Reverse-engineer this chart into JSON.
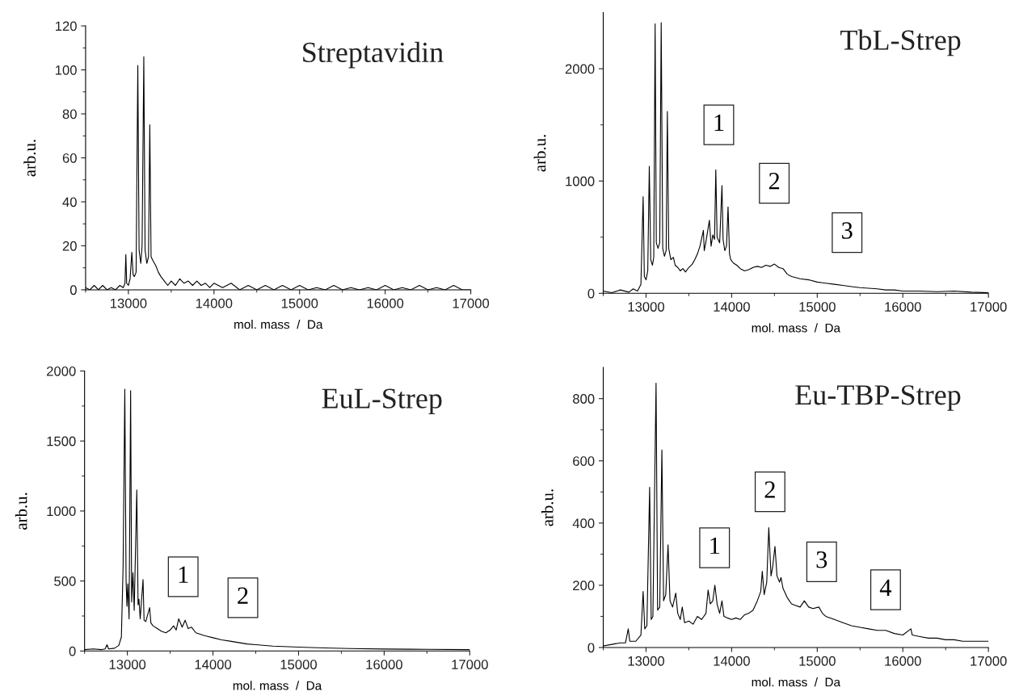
{
  "chart_data": [
    {
      "type": "line",
      "title": "Streptavidin",
      "xlabel": "mol. mass  /  Da",
      "ylabel": "arb.u.",
      "xlim": [
        12500,
        17000
      ],
      "ylim": [
        0,
        120
      ],
      "xticks": [
        {
          "value": 12500,
          "label": null
        },
        13000,
        {
          "value": 13500,
          "label": null
        },
        14000,
        {
          "value": 14500,
          "label": null
        },
        15000,
        {
          "value": 15500,
          "label": null
        },
        16000,
        {
          "value": 16500,
          "label": null
        },
        17000
      ],
      "yticks": [
        0,
        {
          "value": 10,
          "label": null
        },
        20,
        {
          "value": 30,
          "label": null
        },
        40,
        {
          "value": 50,
          "label": null
        },
        60,
        {
          "value": 70,
          "label": null
        },
        80,
        {
          "value": 90,
          "label": null
        },
        100,
        {
          "value": 110,
          "label": null
        },
        120
      ],
      "x": [
        12500,
        12550,
        12600,
        12650,
        12700,
        12750,
        12800,
        12850,
        12900,
        12940,
        12960,
        12970,
        12980,
        13000,
        13020,
        13040,
        13055,
        13070,
        13090,
        13110,
        13125,
        13145,
        13160,
        13180,
        13195,
        13215,
        13235,
        13250,
        13265,
        13290,
        13320,
        13350,
        13380,
        13420,
        13460,
        13500,
        13550,
        13600,
        13650,
        13700,
        13750,
        13800,
        13850,
        13900,
        13950,
        14000,
        14100,
        14200,
        14300,
        14400,
        14500,
        14600,
        14700,
        14800,
        14900,
        15000,
        15100,
        15200,
        15300,
        15400,
        15500,
        15600,
        15700,
        15800,
        15900,
        16000,
        16100,
        16200,
        16300,
        16400,
        16500,
        16600,
        16700,
        16800,
        16900,
        17000
      ],
      "series": [
        {
          "color": "#000000",
          "values": [
            1,
            0,
            2,
            0,
            2,
            0,
            1,
            0,
            2,
            1,
            3,
            16,
            3,
            2,
            5,
            17,
            7,
            6,
            8,
            102,
            18,
            12,
            20,
            106,
            18,
            12,
            15,
            75,
            15,
            13,
            11,
            8,
            6,
            4,
            2,
            4,
            2,
            5,
            3,
            4,
            2,
            4,
            2,
            3,
            1,
            3,
            1,
            3,
            0,
            2,
            0,
            2,
            0,
            2,
            0,
            2,
            0,
            1,
            0,
            2,
            0,
            1,
            0,
            1,
            0,
            2,
            0,
            1,
            0,
            2,
            0,
            1,
            0,
            2,
            0,
            0
          ]
        }
      ]
    },
    {
      "type": "line",
      "title": "TbL-Strep",
      "xlabel": "mol. mass  /  Da",
      "ylabel": "arb.u.",
      "xlim": [
        12500,
        17000
      ],
      "ylim": [
        0,
        2500
      ],
      "xticks": [
        {
          "value": 12500,
          "label": null
        },
        13000,
        {
          "value": 13500,
          "label": null
        },
        14000,
        {
          "value": 14500,
          "label": null
        },
        15000,
        {
          "value": 15500,
          "label": null
        },
        16000,
        {
          "value": 16500,
          "label": null
        },
        17000
      ],
      "yticks": [
        0,
        {
          "value": 500,
          "label": null
        },
        1000,
        {
          "value": 1500,
          "label": null
        },
        2000
      ],
      "x": [
        12500,
        12600,
        12700,
        12800,
        12850,
        12900,
        12940,
        12966,
        12980,
        13000,
        13020,
        13038,
        13055,
        13075,
        13090,
        13106,
        13120,
        13140,
        13160,
        13177,
        13195,
        13215,
        13235,
        13249,
        13265,
        13290,
        13320,
        13340,
        13370,
        13400,
        13430,
        13460,
        13500,
        13540,
        13570,
        13600,
        13630,
        13670,
        13680,
        13700,
        13740,
        13760,
        13780,
        13800,
        13815,
        13830,
        13860,
        13887,
        13900,
        13920,
        13940,
        13958,
        13975,
        13990,
        14020,
        14060,
        14100,
        14150,
        14200,
        14250,
        14300,
        14350,
        14400,
        14450,
        14500,
        14550,
        14600,
        14650,
        14700,
        14800,
        14900,
        15000,
        15100,
        15200,
        15300,
        15400,
        15500,
        15600,
        15700,
        15800,
        15900,
        16000,
        16200,
        16400,
        16600,
        16800,
        17000
      ],
      "series": [
        {
          "color": "#000000",
          "values": [
            20,
            5,
            30,
            10,
            40,
            20,
            80,
            860,
            150,
            120,
            200,
            1130,
            300,
            250,
            320,
            2400,
            450,
            400,
            450,
            2410,
            400,
            330,
            380,
            1620,
            400,
            300,
            320,
            250,
            230,
            200,
            220,
            190,
            230,
            260,
            300,
            350,
            420,
            560,
            380,
            460,
            650,
            420,
            520,
            480,
            1100,
            500,
            450,
            960,
            480,
            380,
            420,
            770,
            350,
            300,
            270,
            250,
            220,
            200,
            210,
            230,
            240,
            230,
            250,
            240,
            260,
            230,
            220,
            170,
            150,
            130,
            120,
            100,
            90,
            80,
            70,
            60,
            50,
            45,
            40,
            30,
            30,
            20,
            20,
            15,
            20,
            10,
            5
          ]
        }
      ],
      "annotations": [
        "1",
        "2",
        "3"
      ]
    },
    {
      "type": "line",
      "title": "EuL-Strep",
      "xlabel": "mol. mass  /  Da",
      "ylabel": "arb.u.",
      "xlim": [
        12500,
        17000
      ],
      "ylim": [
        0,
        2000
      ],
      "xticks": [
        {
          "value": 12500,
          "label": null
        },
        13000,
        {
          "value": 13500,
          "label": null
        },
        14000,
        {
          "value": 14500,
          "label": null
        },
        15000,
        {
          "value": 15500,
          "label": null
        },
        16000,
        {
          "value": 16500,
          "label": null
        },
        17000
      ],
      "yticks": [
        0,
        {
          "value": 250,
          "label": null
        },
        500,
        {
          "value": 750,
          "label": null
        },
        1000,
        {
          "value": 1250,
          "label": null
        },
        1500,
        {
          "value": 1750,
          "label": null
        },
        2000
      ],
      "x": [
        12500,
        12600,
        12700,
        12740,
        12762,
        12780,
        12850,
        12900,
        12930,
        12950,
        12970,
        12985,
        12995,
        13005,
        13020,
        13038,
        13050,
        13065,
        13080,
        13110,
        13125,
        13135,
        13150,
        13183,
        13195,
        13215,
        13260,
        13275,
        13300,
        13350,
        13400,
        13450,
        13500,
        13540,
        13570,
        13600,
        13640,
        13675,
        13710,
        13750,
        13800,
        13900,
        14000,
        14100,
        14200,
        14300,
        14400,
        14500,
        14700,
        15000,
        15300,
        15600,
        16000,
        16500,
        17000
      ],
      "series": [
        {
          "color": "#000000",
          "values": [
            10,
            15,
            10,
            15,
            45,
            15,
            20,
            40,
            100,
            600,
            1870,
            500,
            320,
            480,
            230,
            1860,
            350,
            560,
            290,
            1150,
            330,
            370,
            230,
            510,
            220,
            210,
            310,
            200,
            180,
            160,
            140,
            130,
            150,
            180,
            150,
            230,
            170,
            220,
            160,
            170,
            130,
            110,
            95,
            80,
            70,
            60,
            50,
            45,
            35,
            28,
            22,
            18,
            14,
            12,
            10
          ]
        }
      ],
      "annotations": [
        "1",
        "2"
      ]
    },
    {
      "type": "line",
      "title": "Eu-TBP-Strep",
      "xlabel": "mol. mass  /  Da",
      "ylabel": "arb.u.",
      "xlim": [
        12500,
        17000
      ],
      "ylim": [
        0,
        900
      ],
      "xticks": [
        {
          "value": 12500,
          "label": null
        },
        13000,
        {
          "value": 13500,
          "label": null
        },
        14000,
        {
          "value": 14500,
          "label": null
        },
        15000,
        {
          "value": 15500,
          "label": null
        },
        16000,
        {
          "value": 16500,
          "label": null
        },
        17000
      ],
      "yticks": [
        0,
        {
          "value": 100,
          "label": null
        },
        200,
        {
          "value": 300,
          "label": null
        },
        400,
        {
          "value": 500,
          "label": null
        },
        600,
        {
          "value": 700,
          "label": null
        },
        800
      ],
      "x": [
        12500,
        12600,
        12700,
        12760,
        12792,
        12810,
        12880,
        12940,
        12966,
        12985,
        13010,
        13042,
        13060,
        13080,
        13117,
        13135,
        13160,
        13185,
        13205,
        13230,
        13257,
        13280,
        13310,
        13347,
        13370,
        13400,
        13423,
        13450,
        13500,
        13550,
        13600,
        13650,
        13700,
        13725,
        13750,
        13780,
        13804,
        13830,
        13860,
        13887,
        13910,
        13950,
        14000,
        14050,
        14100,
        14150,
        14200,
        14250,
        14300,
        14340,
        14358,
        14380,
        14410,
        14434,
        14460,
        14480,
        14506,
        14530,
        14560,
        14577,
        14600,
        14650,
        14700,
        14750,
        14800,
        14849,
        14900,
        14950,
        15019,
        15060,
        15100,
        15200,
        15300,
        15400,
        15500,
        15600,
        15700,
        15800,
        15900,
        16000,
        16094,
        16110,
        16200,
        16300,
        16400,
        16500,
        16600,
        16700,
        16800,
        16900,
        17000
      ],
      "series": [
        {
          "color": "#000000",
          "values": [
            5,
            10,
            15,
            15,
            60,
            20,
            20,
            40,
            180,
            60,
            70,
            515,
            90,
            100,
            850,
            120,
            130,
            635,
            150,
            170,
            330,
            150,
            130,
            175,
            110,
            90,
            130,
            80,
            85,
            75,
            100,
            90,
            110,
            185,
            140,
            150,
            200,
            140,
            110,
            150,
            100,
            95,
            90,
            95,
            90,
            105,
            110,
            120,
            150,
            180,
            245,
            170,
            210,
            385,
            230,
            260,
            325,
            230,
            210,
            225,
            190,
            160,
            140,
            135,
            130,
            150,
            130,
            125,
            130,
            110,
            100,
            90,
            80,
            70,
            65,
            60,
            55,
            55,
            45,
            40,
            60,
            40,
            35,
            30,
            30,
            25,
            25,
            20,
            20,
            20,
            20
          ]
        }
      ],
      "annotations": [
        "1",
        "2",
        "3",
        "4"
      ]
    }
  ]
}
